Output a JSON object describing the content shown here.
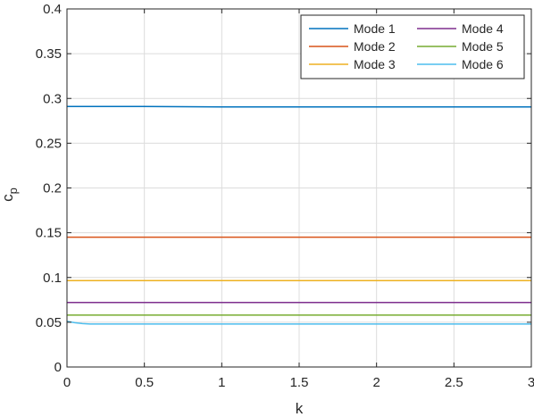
{
  "chart_data": {
    "type": "line",
    "xlabel": "k",
    "ylabel": "c",
    "ylabel_sub": "p",
    "xlim": [
      0,
      3
    ],
    "ylim": [
      0,
      0.4
    ],
    "xticks": [
      0,
      0.5,
      1,
      1.5,
      2,
      2.5,
      3
    ],
    "xtick_labels": [
      "0",
      "0.5",
      "1",
      "1.5",
      "2",
      "2.5",
      "3"
    ],
    "yticks": [
      0,
      0.05,
      0.1,
      0.15,
      0.2,
      0.25,
      0.3,
      0.35,
      0.4
    ],
    "ytick_labels": [
      "0",
      "0.05",
      "0.1",
      "0.15",
      "0.2",
      "0.25",
      "0.3",
      "0.35",
      "0.4"
    ],
    "grid": true,
    "legend_position": "top-right",
    "series": [
      {
        "name": "Mode 1",
        "color": "#0072BD",
        "x": [
          0,
          0.5,
          1,
          1.5,
          2,
          2.5,
          3
        ],
        "y": [
          0.291,
          0.291,
          0.2905,
          0.2905,
          0.2905,
          0.2905,
          0.2905
        ]
      },
      {
        "name": "Mode 2",
        "color": "#D95319",
        "x": [
          0,
          0.5,
          1,
          1.5,
          2,
          2.5,
          3
        ],
        "y": [
          0.145,
          0.145,
          0.145,
          0.145,
          0.145,
          0.145,
          0.145
        ]
      },
      {
        "name": "Mode 3",
        "color": "#EDB120",
        "x": [
          0,
          0.5,
          1,
          1.5,
          2,
          2.5,
          3
        ],
        "y": [
          0.0965,
          0.0965,
          0.0965,
          0.0965,
          0.0965,
          0.0965,
          0.0965
        ]
      },
      {
        "name": "Mode 4",
        "color": "#7E2F8E",
        "x": [
          0,
          0.5,
          1,
          1.5,
          2,
          2.5,
          3
        ],
        "y": [
          0.072,
          0.072,
          0.072,
          0.072,
          0.072,
          0.072,
          0.072
        ]
      },
      {
        "name": "Mode 5",
        "color": "#77AC30",
        "x": [
          0,
          0.5,
          1,
          1.5,
          2,
          2.5,
          3
        ],
        "y": [
          0.058,
          0.058,
          0.058,
          0.058,
          0.058,
          0.058,
          0.058
        ]
      },
      {
        "name": "Mode 6",
        "color": "#4DBEEE",
        "x": [
          0,
          0.05,
          0.1,
          0.15,
          0.2,
          0.5,
          1,
          1.5,
          2,
          2.5,
          3
        ],
        "y": [
          0.051,
          0.0495,
          0.0485,
          0.048,
          0.048,
          0.048,
          0.048,
          0.048,
          0.048,
          0.048,
          0.048
        ]
      }
    ]
  }
}
